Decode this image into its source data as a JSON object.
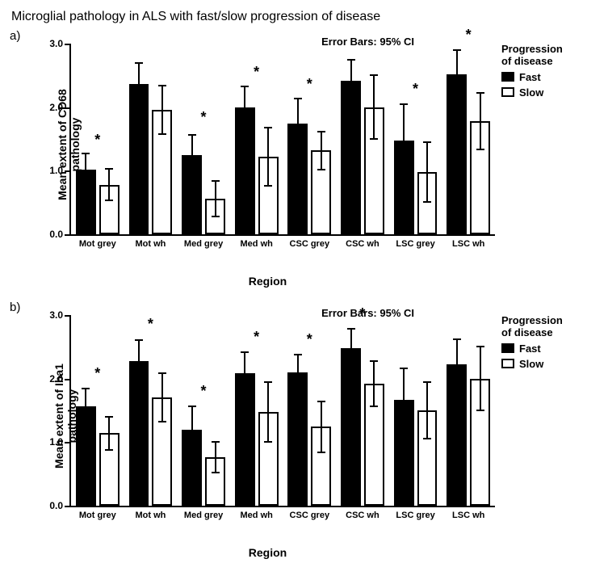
{
  "figure": {
    "title": "Microglial pathology in ALS with fast/slow progression of disease",
    "background_color": "#ffffff",
    "text_color": "#000000",
    "font_family": "Arial",
    "title_fontsize": 16,
    "panel_label_fontsize": 15,
    "axis_label_fontsize": 14,
    "tick_fontsize": 12,
    "legend_fontsize": 13
  },
  "legend": {
    "title_line1": "Progression",
    "title_line2": "of disease",
    "items": [
      {
        "label": "Fast",
        "fill": "#000000",
        "border": "#000000"
      },
      {
        "label": "Slow",
        "fill": "#ffffff",
        "border": "#000000"
      }
    ]
  },
  "axes": {
    "xlabel": "Region",
    "categories": [
      "Mot grey",
      "Mot wh",
      "Med grey",
      "Med wh",
      "CSC grey",
      "CSC wh",
      "LSC grey",
      "LSC wh"
    ],
    "ylim": [
      0,
      3.0
    ],
    "ytick_step": 1.0,
    "error_bars_label": "Error Bars: 95% CI",
    "bar_border_color": "#000000",
    "bar_border_width": 2,
    "bar_width_frac": 0.38,
    "group_gap_frac": 0.06,
    "err_cap_width": 10
  },
  "panels": [
    {
      "id": "a",
      "label": "a)",
      "ylabel": "Mean extent of CD68\npathology",
      "type": "bar",
      "series": [
        {
          "name": "Fast",
          "fill": "#000000",
          "values": [
            1.02,
            2.36,
            1.24,
            2.0,
            1.74,
            2.42,
            1.48,
            2.52
          ],
          "err": [
            0.25,
            0.33,
            0.32,
            0.33,
            0.4,
            0.33,
            0.57,
            0.38
          ]
        },
        {
          "name": "Slow",
          "fill": "#ffffff",
          "values": [
            0.78,
            1.96,
            0.56,
            1.22,
            1.32,
            2.0,
            0.98,
            1.78
          ],
          "err": [
            0.25,
            0.38,
            0.28,
            0.46,
            0.3,
            0.5,
            0.47,
            0.45
          ]
        }
      ],
      "sig_positions": [
        0,
        2,
        3,
        4,
        6,
        7
      ],
      "sig_y": [
        1.35,
        1.7,
        2.42,
        2.22,
        2.15,
        3.0
      ]
    },
    {
      "id": "b",
      "label": "b)",
      "ylabel": "Mean extent of Iba1\npathology",
      "type": "bar",
      "series": [
        {
          "name": "Fast",
          "fill": "#000000",
          "values": [
            1.56,
            2.28,
            1.2,
            2.08,
            2.1,
            2.48,
            1.66,
            2.22
          ],
          "err": [
            0.28,
            0.33,
            0.36,
            0.33,
            0.28,
            0.3,
            0.5,
            0.4
          ]
        },
        {
          "name": "Slow",
          "fill": "#ffffff",
          "values": [
            1.14,
            1.7,
            0.76,
            1.48,
            1.24,
            1.92,
            1.5,
            2.0
          ],
          "err": [
            0.26,
            0.38,
            0.24,
            0.47,
            0.4,
            0.36,
            0.45,
            0.5
          ]
        }
      ],
      "sig_positions": [
        0,
        1,
        2,
        3,
        4,
        5
      ],
      "sig_y": [
        1.94,
        2.72,
        1.66,
        2.52,
        2.48,
        2.88
      ]
    }
  ]
}
